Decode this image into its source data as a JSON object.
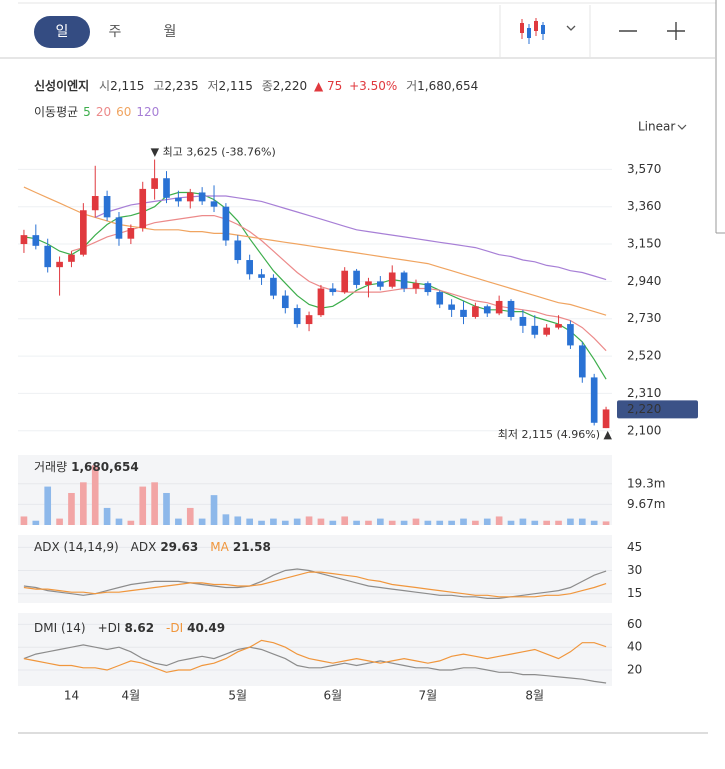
{
  "tabs": [
    "일",
    "주",
    "월"
  ],
  "header": {
    "name": "신성이엔지",
    "open_label": "시",
    "open": "2,115",
    "high_label": "고",
    "high": "2,235",
    "low_label": "저",
    "low": "2,115",
    "close_label": "종",
    "close": "2,220",
    "change": "▲ 75",
    "change_pct": "+3.50%",
    "volume_label": "거",
    "volume": "1,680,654"
  },
  "scale": "Linear",
  "chart_data": [
    {
      "type": "candlestick",
      "legend_title": "이동평균",
      "up_color": "#e0393e",
      "down_color": "#2a72d4",
      "categories": [
        null,
        null,
        null,
        null,
        "14",
        null,
        null,
        null,
        null,
        "4월",
        null,
        null,
        null,
        null,
        null,
        null,
        null,
        null,
        "5월",
        null,
        null,
        null,
        null,
        null,
        null,
        null,
        "6월",
        null,
        null,
        null,
        null,
        null,
        null,
        null,
        "7월",
        null,
        null,
        null,
        null,
        null,
        null,
        null,
        null,
        "8월",
        null,
        null,
        null,
        null,
        null,
        null
      ],
      "open": [
        3150,
        3200,
        3140,
        3020,
        3050,
        3090,
        3340,
        3420,
        3300,
        3180,
        3240,
        3460,
        3520,
        3410,
        3390,
        3440,
        3390,
        3360,
        3170,
        3060,
        2980,
        2960,
        2860,
        2790,
        2700,
        2750,
        2900,
        2880,
        3000,
        2920,
        2940,
        2910,
        2990,
        2900,
        2930,
        2880,
        2810,
        2780,
        2740,
        2800,
        2760,
        2830,
        2740,
        2690,
        2640,
        2680,
        2700,
        2580,
        2400,
        2115
      ],
      "high": [
        3230,
        3260,
        3180,
        3080,
        3110,
        3380,
        3590,
        3450,
        3330,
        3260,
        3500,
        3625,
        3560,
        3450,
        3460,
        3470,
        3480,
        3380,
        3200,
        3090,
        3010,
        2980,
        2890,
        2810,
        2770,
        2920,
        2930,
        3020,
        3010,
        2960,
        2970,
        3030,
        3000,
        2950,
        2940,
        2890,
        2840,
        2830,
        2820,
        2810,
        2860,
        2840,
        2780,
        2750,
        2700,
        2750,
        2720,
        2600,
        2420,
        2235
      ],
      "low": [
        3100,
        3120,
        2990,
        2860,
        3020,
        3080,
        3300,
        3280,
        3140,
        3150,
        3220,
        3400,
        3380,
        3360,
        3350,
        3370,
        3330,
        3140,
        3040,
        2950,
        2920,
        2840,
        2760,
        2680,
        2660,
        2740,
        2860,
        2870,
        2900,
        2850,
        2890,
        2900,
        2880,
        2870,
        2860,
        2790,
        2740,
        2700,
        2730,
        2740,
        2750,
        2720,
        2650,
        2620,
        2630,
        2670,
        2560,
        2370,
        2130,
        2115
      ],
      "close": [
        3200,
        3140,
        3020,
        3050,
        3090,
        3340,
        3420,
        3300,
        3180,
        3240,
        3460,
        3520,
        3410,
        3390,
        3440,
        3390,
        3360,
        3170,
        3060,
        2980,
        2960,
        2860,
        2790,
        2700,
        2750,
        2900,
        2880,
        3000,
        2920,
        2940,
        2910,
        2990,
        2900,
        2930,
        2880,
        2810,
        2780,
        2740,
        2800,
        2760,
        2830,
        2740,
        2690,
        2640,
        2680,
        2700,
        2580,
        2400,
        2145,
        2220
      ],
      "series": [
        {
          "name": "5",
          "color": "#3dae4c",
          "values": [
            3190,
            3180,
            3150,
            3110,
            3090,
            3130,
            3200,
            3260,
            3300,
            3310,
            3330,
            3360,
            3420,
            3440,
            3440,
            3430,
            3400,
            3350,
            3280,
            3180,
            3090,
            3000,
            2930,
            2860,
            2810,
            2790,
            2800,
            2840,
            2890,
            2920,
            2930,
            2950,
            2940,
            2930,
            2920,
            2890,
            2860,
            2830,
            2800,
            2780,
            2780,
            2770,
            2770,
            2740,
            2720,
            2700,
            2660,
            2600,
            2500,
            2390
          ]
        },
        {
          "name": "20",
          "color": "#ec8a8a",
          "values": [
            null,
            null,
            null,
            null,
            3110,
            3130,
            3160,
            3190,
            3210,
            3230,
            3250,
            3270,
            3280,
            3290,
            3300,
            3310,
            3310,
            3290,
            3260,
            3220,
            3170,
            3110,
            3050,
            2990,
            2940,
            2910,
            2890,
            2880,
            2880,
            2880,
            2880,
            2890,
            2900,
            2900,
            2900,
            2890,
            2870,
            2850,
            2830,
            2820,
            2800,
            2790,
            2780,
            2770,
            2750,
            2740,
            2720,
            2680,
            2620,
            2550
          ]
        },
        {
          "name": "60",
          "color": "#f0a460",
          "values": [
            3470,
            3440,
            3410,
            3380,
            3350,
            3320,
            3300,
            3280,
            3260,
            3250,
            3240,
            3230,
            3230,
            3230,
            3220,
            3220,
            3210,
            3210,
            3200,
            3190,
            3180,
            3170,
            3160,
            3150,
            3140,
            3130,
            3120,
            3110,
            3100,
            3090,
            3080,
            3070,
            3060,
            3050,
            3040,
            3020,
            3000,
            2980,
            2960,
            2940,
            2920,
            2900,
            2880,
            2860,
            2840,
            2820,
            2810,
            2790,
            2770,
            2750
          ]
        },
        {
          "name": "120",
          "color": "#a77fd6",
          "values": [
            null,
            null,
            null,
            null,
            null,
            null,
            3300,
            3330,
            3350,
            3370,
            3380,
            3390,
            3400,
            3410,
            3415,
            3420,
            3420,
            3420,
            3410,
            3400,
            3390,
            3370,
            3350,
            3330,
            3310,
            3290,
            3270,
            3250,
            3230,
            3220,
            3210,
            3200,
            3190,
            3180,
            3170,
            3160,
            3150,
            3140,
            3130,
            3110,
            3090,
            3080,
            3060,
            3050,
            3030,
            3020,
            3000,
            2990,
            2970,
            2950
          ]
        }
      ],
      "ylim": [
        2020,
        3690
      ],
      "yticks": [
        {
          "value": 2100,
          "label": "2,100"
        },
        {
          "value": 2310,
          "label": "2,310"
        },
        {
          "value": 2520,
          "label": "2,520"
        },
        {
          "value": 2730,
          "label": "2,730"
        },
        {
          "value": 2940,
          "label": "2,940"
        },
        {
          "value": 3150,
          "label": "3,150"
        },
        {
          "value": 3360,
          "label": "3,360"
        },
        {
          "value": 3570,
          "label": "3,570"
        }
      ],
      "grid": true,
      "max_label": "▼ 최고 3,625 (-38.76%)",
      "min_label": "최저 2,115 (4.96%) ▲",
      "last_label": "2,220",
      "last_color": "#3b5287"
    },
    {
      "type": "bar",
      "title": "거래량",
      "last_label": "1,680,654",
      "up_color": "#f2a5a5",
      "down_color": "#8db8ea",
      "values": [
        4000000,
        2000000,
        18000000,
        3000000,
        15000000,
        20000000,
        28000000,
        8000000,
        3000000,
        2000000,
        18000000,
        20000000,
        15000000,
        3000000,
        8000000,
        3000000,
        14000000,
        5000000,
        4000000,
        3000000,
        2000000,
        3000000,
        2000000,
        3000000,
        4000000,
        3000000,
        2000000,
        4000000,
        2000000,
        2000000,
        3000000,
        2000000,
        2000000,
        3000000,
        2000000,
        2000000,
        2000000,
        3000000,
        2000000,
        3000000,
        4000000,
        2000000,
        3000000,
        2000000,
        2000000,
        2000000,
        3000000,
        3000000,
        2000000,
        1680654
      ],
      "ylim": [
        0,
        32800000
      ],
      "yticks": [
        {
          "value": 9670000,
          "label": "9.67m"
        },
        {
          "value": 19300000,
          "label": "19.3m"
        }
      ]
    },
    {
      "type": "line",
      "title": "ADX (14,14,9)",
      "series": [
        {
          "name": "ADX",
          "color": "#8c8c8c",
          "values": [
            20,
            19,
            17,
            16,
            15,
            14,
            15,
            17,
            19,
            21,
            22,
            23,
            23,
            23,
            22,
            21,
            20,
            19,
            19,
            20,
            23,
            27,
            30,
            31,
            30,
            28,
            26,
            24,
            22,
            20,
            19,
            18,
            17,
            16,
            15,
            14,
            14,
            13,
            13,
            12,
            12,
            13,
            14,
            15,
            16,
            17,
            19,
            23,
            27,
            29.63
          ]
        },
        {
          "name": "MA",
          "color": "#f0963c",
          "values": [
            19,
            18,
            18,
            17,
            16,
            16,
            15,
            16,
            16,
            17,
            18,
            19,
            20,
            21,
            22,
            22,
            21,
            21,
            20,
            20,
            21,
            23,
            25,
            27,
            29,
            29,
            28,
            27,
            26,
            24,
            23,
            21,
            20,
            19,
            18,
            17,
            16,
            15,
            14,
            14,
            13,
            13,
            13,
            13,
            14,
            14,
            15,
            17,
            19,
            21.58
          ]
        }
      ],
      "ylim": [
        9,
        53
      ],
      "yticks": [
        15,
        30,
        45
      ]
    },
    {
      "type": "line",
      "title": "DMI (14)",
      "series": [
        {
          "name": "+DI",
          "color": "#8c8c8c",
          "values": [
            30,
            34,
            36,
            38,
            40,
            42,
            40,
            38,
            40,
            36,
            30,
            26,
            24,
            28,
            30,
            32,
            30,
            34,
            38,
            40,
            38,
            34,
            30,
            24,
            22,
            22,
            24,
            26,
            24,
            26,
            28,
            26,
            24,
            22,
            22,
            20,
            20,
            22,
            22,
            20,
            18,
            18,
            16,
            16,
            15,
            14,
            13,
            12,
            10,
            8.62
          ]
        },
        {
          "name": "-DI",
          "color": "#f0963c",
          "values": [
            30,
            28,
            26,
            24,
            24,
            22,
            22,
            20,
            24,
            28,
            26,
            22,
            18,
            20,
            20,
            24,
            26,
            30,
            36,
            40,
            46,
            44,
            40,
            34,
            30,
            28,
            26,
            28,
            30,
            28,
            26,
            28,
            30,
            28,
            26,
            28,
            32,
            34,
            32,
            30,
            32,
            34,
            36,
            38,
            34,
            30,
            36,
            44,
            44,
            40.49
          ]
        }
      ],
      "ylim": [
        6,
        70
      ],
      "yticks": [
        20,
        40,
        60
      ]
    }
  ]
}
